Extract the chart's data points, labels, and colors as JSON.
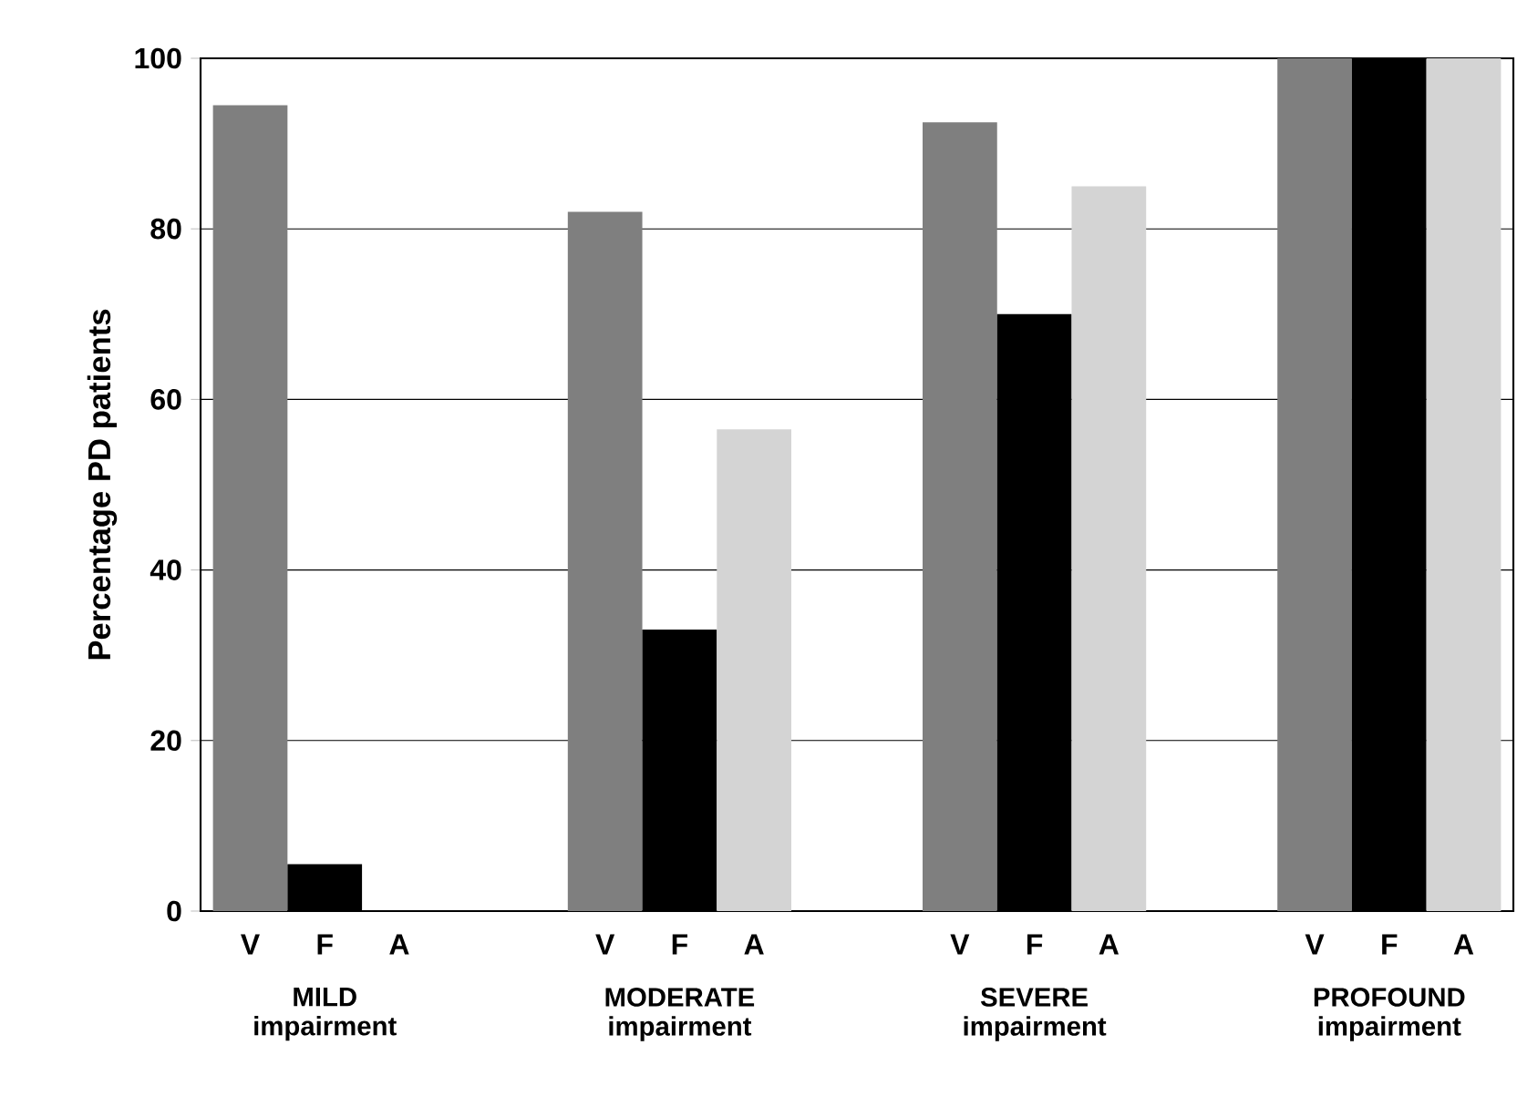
{
  "chart_data": {
    "type": "bar",
    "ylabel": "Percentage PD patients",
    "categories": [
      "MILD impairment",
      "MODERATE impairment",
      "SEVERE impairment",
      "PROFOUND impairment"
    ],
    "series": [
      {
        "name": "V",
        "color": "#7f7f7f",
        "values": [
          94.5,
          82,
          92.5,
          100
        ]
      },
      {
        "name": "F",
        "color": "#000000",
        "values": [
          5.5,
          33,
          70,
          100
        ]
      },
      {
        "name": "A",
        "color": "#d4d4d4",
        "values": [
          0,
          56.5,
          85,
          100
        ]
      }
    ],
    "ylim": [
      0,
      100
    ],
    "yticks": [
      0,
      20,
      40,
      60,
      80,
      100
    ],
    "grid": "y"
  }
}
